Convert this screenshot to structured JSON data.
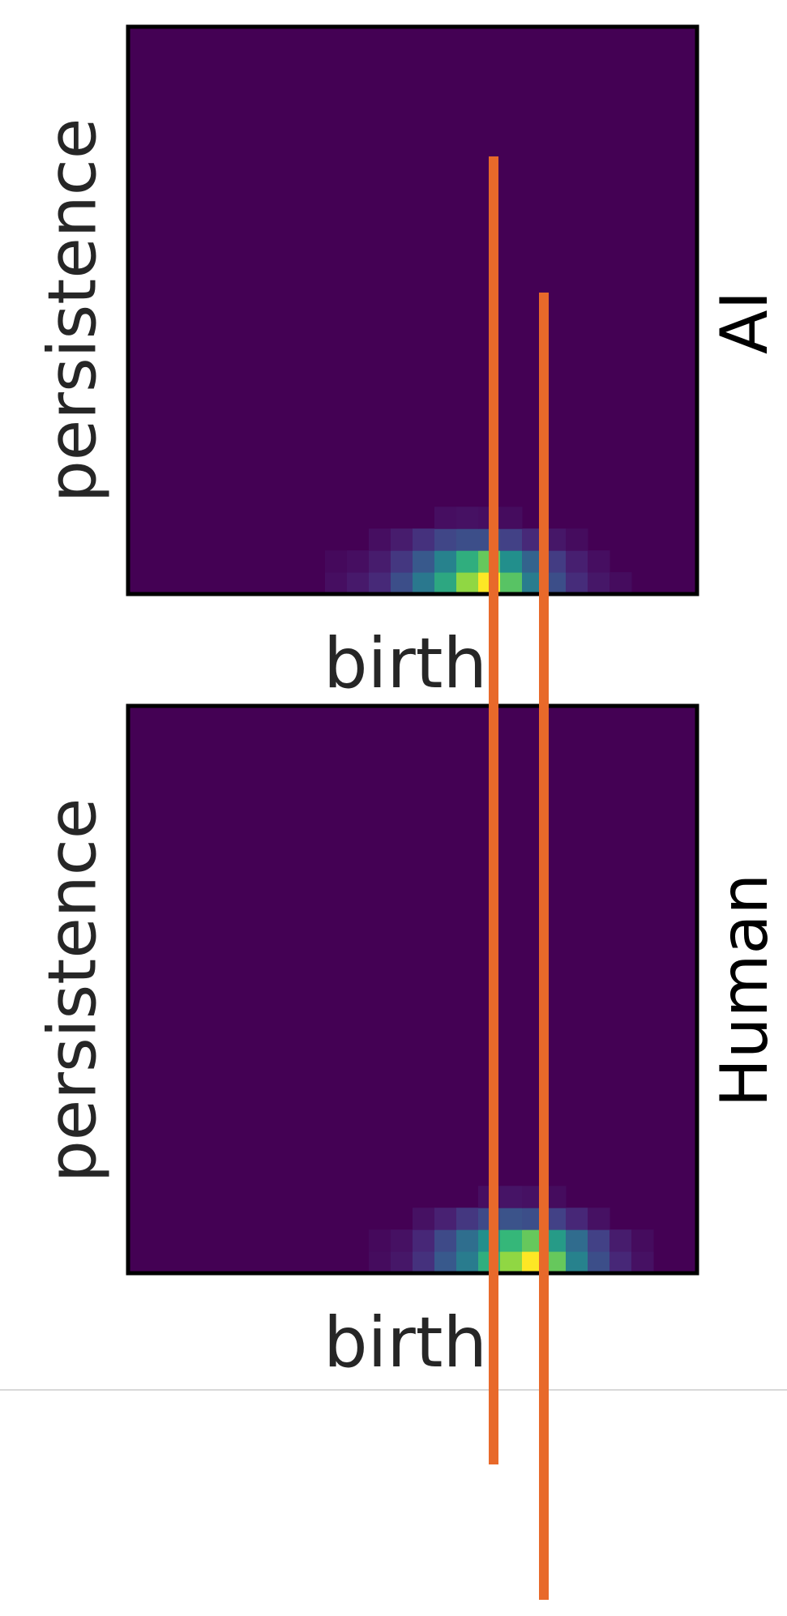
{
  "chart_data": {
    "type": "heatmap",
    "colormap": "viridis",
    "grid": false,
    "panels": [
      {
        "row_label": "AI",
        "xlabel": "birth",
        "ylabel": "persistence",
        "cells": [
          {
            "col": 9,
            "row": 0,
            "value": 0.05
          },
          {
            "col": 10,
            "row": 0,
            "value": 0.09
          },
          {
            "col": 11,
            "row": 0,
            "value": 0.15
          },
          {
            "col": 12,
            "row": 0,
            "value": 0.3
          },
          {
            "col": 13,
            "row": 0,
            "value": 0.5
          },
          {
            "col": 14,
            "row": 0,
            "value": 0.7
          },
          {
            "col": 15,
            "row": 0,
            "value": 0.88
          },
          {
            "col": 16,
            "row": 0,
            "value": 1.0
          },
          {
            "col": 17,
            "row": 0,
            "value": 0.8
          },
          {
            "col": 18,
            "row": 0,
            "value": 0.52
          },
          {
            "col": 19,
            "row": 0,
            "value": 0.3
          },
          {
            "col": 20,
            "row": 0,
            "value": 0.16
          },
          {
            "col": 21,
            "row": 0,
            "value": 0.08
          },
          {
            "col": 22,
            "row": 0,
            "value": 0.04
          },
          {
            "col": 9,
            "row": 1,
            "value": 0.03
          },
          {
            "col": 10,
            "row": 1,
            "value": 0.05
          },
          {
            "col": 11,
            "row": 1,
            "value": 0.1
          },
          {
            "col": 12,
            "row": 1,
            "value": 0.2
          },
          {
            "col": 13,
            "row": 1,
            "value": 0.35
          },
          {
            "col": 14,
            "row": 1,
            "value": 0.55
          },
          {
            "col": 15,
            "row": 1,
            "value": 0.72
          },
          {
            "col": 16,
            "row": 1,
            "value": 0.82
          },
          {
            "col": 17,
            "row": 1,
            "value": 0.62
          },
          {
            "col": 18,
            "row": 1,
            "value": 0.4
          },
          {
            "col": 19,
            "row": 1,
            "value": 0.22
          },
          {
            "col": 20,
            "row": 1,
            "value": 0.11
          },
          {
            "col": 21,
            "row": 1,
            "value": 0.05
          },
          {
            "col": 11,
            "row": 2,
            "value": 0.05
          },
          {
            "col": 12,
            "row": 2,
            "value": 0.1
          },
          {
            "col": 13,
            "row": 2,
            "value": 0.18
          },
          {
            "col": 14,
            "row": 2,
            "value": 0.26
          },
          {
            "col": 15,
            "row": 2,
            "value": 0.3
          },
          {
            "col": 16,
            "row": 2,
            "value": 0.3
          },
          {
            "col": 17,
            "row": 2,
            "value": 0.24
          },
          {
            "col": 18,
            "row": 2,
            "value": 0.15
          },
          {
            "col": 19,
            "row": 2,
            "value": 0.08
          },
          {
            "col": 20,
            "row": 2,
            "value": 0.04
          },
          {
            "col": 14,
            "row": 3,
            "value": 0.05
          },
          {
            "col": 15,
            "row": 3,
            "value": 0.06
          },
          {
            "col": 16,
            "row": 3,
            "value": 0.05
          },
          {
            "col": 17,
            "row": 3,
            "value": 0.04
          }
        ]
      },
      {
        "row_label": "Human",
        "xlabel": "birth",
        "ylabel": "persistence",
        "cells": [
          {
            "col": 11,
            "row": 0,
            "value": 0.04
          },
          {
            "col": 12,
            "row": 0,
            "value": 0.08
          },
          {
            "col": 13,
            "row": 0,
            "value": 0.18
          },
          {
            "col": 14,
            "row": 0,
            "value": 0.35
          },
          {
            "col": 15,
            "row": 0,
            "value": 0.52
          },
          {
            "col": 16,
            "row": 0,
            "value": 0.72
          },
          {
            "col": 17,
            "row": 0,
            "value": 0.88
          },
          {
            "col": 18,
            "row": 0,
            "value": 1.0
          },
          {
            "col": 19,
            "row": 0,
            "value": 0.82
          },
          {
            "col": 20,
            "row": 0,
            "value": 0.55
          },
          {
            "col": 21,
            "row": 0,
            "value": 0.3
          },
          {
            "col": 22,
            "row": 0,
            "value": 0.14
          },
          {
            "col": 23,
            "row": 0,
            "value": 0.06
          },
          {
            "col": 11,
            "row": 1,
            "value": 0.03
          },
          {
            "col": 12,
            "row": 1,
            "value": 0.06
          },
          {
            "col": 13,
            "row": 1,
            "value": 0.14
          },
          {
            "col": 14,
            "row": 1,
            "value": 0.28
          },
          {
            "col": 15,
            "row": 1,
            "value": 0.45
          },
          {
            "col": 16,
            "row": 1,
            "value": 0.62
          },
          {
            "col": 17,
            "row": 1,
            "value": 0.75
          },
          {
            "col": 18,
            "row": 1,
            "value": 0.82
          },
          {
            "col": 19,
            "row": 1,
            "value": 0.66
          },
          {
            "col": 20,
            "row": 1,
            "value": 0.44
          },
          {
            "col": 21,
            "row": 1,
            "value": 0.24
          },
          {
            "col": 22,
            "row": 1,
            "value": 0.1
          },
          {
            "col": 23,
            "row": 1,
            "value": 0.04
          },
          {
            "col": 13,
            "row": 2,
            "value": 0.06
          },
          {
            "col": 14,
            "row": 2,
            "value": 0.12
          },
          {
            "col": 15,
            "row": 2,
            "value": 0.2
          },
          {
            "col": 16,
            "row": 2,
            "value": 0.28
          },
          {
            "col": 17,
            "row": 2,
            "value": 0.32
          },
          {
            "col": 18,
            "row": 2,
            "value": 0.3
          },
          {
            "col": 19,
            "row": 2,
            "value": 0.24
          },
          {
            "col": 20,
            "row": 2,
            "value": 0.14
          },
          {
            "col": 21,
            "row": 2,
            "value": 0.06
          },
          {
            "col": 16,
            "row": 3,
            "value": 0.05
          },
          {
            "col": 17,
            "row": 3,
            "value": 0.07
          },
          {
            "col": 18,
            "row": 3,
            "value": 0.06
          },
          {
            "col": 19,
            "row": 3,
            "value": 0.04
          }
        ]
      }
    ],
    "overlay": {
      "description_color": "#e8692a",
      "lines": 2
    }
  },
  "colors": {
    "background": "#440154",
    "frame": "#000000",
    "overlay_line": "#e8692a",
    "divider": "#cccccc"
  }
}
